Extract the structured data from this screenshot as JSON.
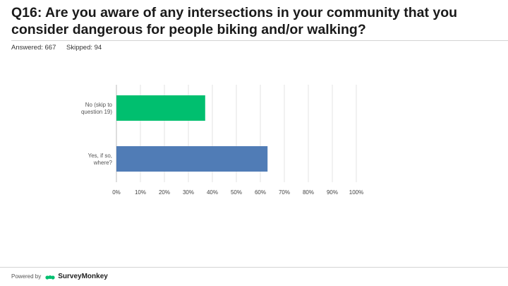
{
  "header": {
    "title": "Q16: Are you aware of any intersections in your community that you consider dangerous for people biking and/or walking?",
    "answered": "Answered: 667",
    "skipped": "Skipped: 94"
  },
  "chart_data": {
    "type": "bar",
    "orientation": "horizontal",
    "categories": [
      "No (skip to question 19)",
      "Yes, if so, where?"
    ],
    "category_lines": [
      [
        "No (skip to",
        "question 19)"
      ],
      [
        "Yes, if so,",
        "where?"
      ]
    ],
    "values": [
      37,
      63
    ],
    "colors": [
      "#00bf6f",
      "#507cb6"
    ],
    "xlim": [
      0,
      100
    ],
    "x_ticks": [
      "0%",
      "10%",
      "20%",
      "30%",
      "40%",
      "50%",
      "60%",
      "70%",
      "80%",
      "90%",
      "100%"
    ],
    "grid": true
  },
  "footer": {
    "powered_by": "Powered by",
    "brand": "SurveyMonkey",
    "logo_icon": "surveymonkey-logo-icon"
  }
}
